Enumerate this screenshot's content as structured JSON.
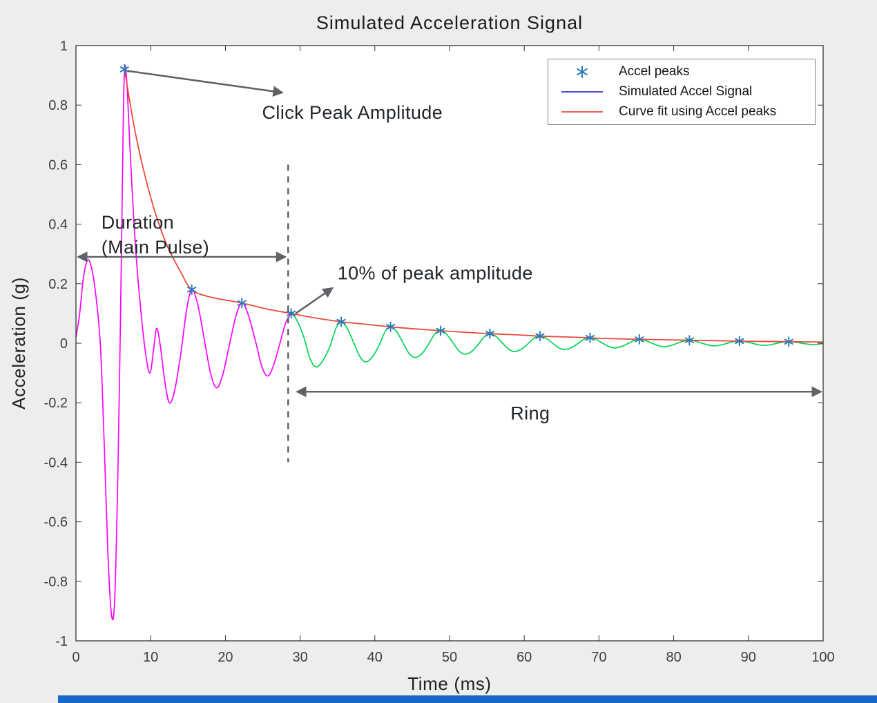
{
  "figure": {
    "background": "#ededed",
    "plot_background": "#ffffff",
    "axis_color": "#333333",
    "tick_label_color": "#3d3d3d",
    "arrow_color": "#5f6368",
    "bottom_bar_color": "#1968c8"
  },
  "chart_data": {
    "type": "line",
    "title": "Simulated Acceleration Signal",
    "xlabel": "Time (ms)",
    "ylabel": "Acceleration (g)",
    "xlim": [
      0,
      100
    ],
    "ylim": [
      -1,
      1
    ],
    "x_ticks": [
      0,
      10,
      20,
      30,
      40,
      50,
      60,
      70,
      80,
      90,
      100
    ],
    "y_ticks": [
      1,
      0.8,
      0.6,
      0.4,
      0.2,
      0,
      -0.2,
      -0.4,
      -0.6,
      -0.8,
      -1
    ],
    "grid": false,
    "legend": {
      "position": "top-right",
      "entries": [
        {
          "label": "Accel peaks",
          "marker": "asterisk",
          "color": "#2b7bba"
        },
        {
          "label": "Simulated Accel Signal",
          "marker": "line",
          "color": "#3333cc"
        },
        {
          "label": "Curve fit using Accel peaks",
          "marker": "line",
          "color": "#e74a3b"
        }
      ]
    },
    "peaks": {
      "t": [
        6.5,
        15.5,
        22.2,
        28.8,
        35.5,
        42.1,
        48.8,
        55.4,
        62.1,
        68.8,
        75.4,
        82.1,
        88.8,
        95.4
      ],
      "y": [
        0.92,
        0.18,
        0.135,
        0.1,
        0.072,
        0.055,
        0.042,
        0.032,
        0.024,
        0.018,
        0.013,
        0.01,
        0.007,
        0.005
      ],
      "marker_color": "#2b7bba"
    },
    "signal": {
      "main_pulse_color": "#ff00ff",
      "ring_color": "#00d455",
      "split_t": 28.8,
      "points": [
        [
          0,
          0.02
        ],
        [
          0.5,
          0.1
        ],
        [
          1.0,
          0.22
        ],
        [
          1.6,
          0.28
        ],
        [
          2.2,
          0.24
        ],
        [
          2.8,
          0.13
        ],
        [
          3.3,
          -0.02
        ],
        [
          3.8,
          -0.35
        ],
        [
          4.3,
          -0.72
        ],
        [
          4.8,
          -0.92
        ],
        [
          5.2,
          -0.85
        ],
        [
          5.6,
          -0.45
        ],
        [
          6.0,
          0.15
        ],
        [
          6.3,
          0.7
        ],
        [
          6.5,
          0.92
        ],
        [
          6.8,
          0.88
        ],
        [
          7.3,
          0.62
        ],
        [
          7.9,
          0.35
        ],
        [
          8.6,
          0.13
        ],
        [
          9.3,
          -0.03
        ],
        [
          9.9,
          -0.1
        ],
        [
          10.4,
          -0.02
        ],
        [
          10.8,
          0.05
        ],
        [
          11.3,
          -0.01
        ],
        [
          11.9,
          -0.13
        ],
        [
          12.5,
          -0.2
        ],
        [
          13.2,
          -0.16
        ],
        [
          14.0,
          -0.04
        ],
        [
          14.8,
          0.11
        ],
        [
          15.5,
          0.18
        ],
        [
          16.3,
          0.13
        ],
        [
          17.2,
          0.01
        ],
        [
          18.0,
          -0.1
        ],
        [
          18.8,
          -0.15
        ],
        [
          19.6,
          -0.11
        ],
        [
          20.5,
          -0.01
        ],
        [
          21.4,
          0.09
        ],
        [
          22.2,
          0.135
        ],
        [
          23.0,
          0.1
        ],
        [
          24.0,
          0.01
        ],
        [
          24.9,
          -0.08
        ],
        [
          25.7,
          -0.11
        ],
        [
          26.5,
          -0.07
        ],
        [
          27.4,
          0.01
        ],
        [
          28.1,
          0.07
        ],
        [
          28.8,
          0.1
        ],
        [
          29.5,
          0.08
        ],
        [
          30.5,
          0.02
        ],
        [
          31.3,
          -0.05
        ],
        [
          32.1,
          -0.08
        ],
        [
          33.0,
          -0.06
        ],
        [
          34.0,
          -0.01
        ],
        [
          34.8,
          0.05
        ],
        [
          35.5,
          0.072
        ],
        [
          36.3,
          0.05
        ],
        [
          37.2,
          0.0
        ],
        [
          38.0,
          -0.045
        ],
        [
          38.8,
          -0.063
        ],
        [
          39.7,
          -0.045
        ],
        [
          40.6,
          -0.005
        ],
        [
          41.4,
          0.04
        ],
        [
          42.1,
          0.055
        ],
        [
          42.9,
          0.04
        ],
        [
          43.8,
          0.0
        ],
        [
          44.6,
          -0.035
        ],
        [
          45.4,
          -0.048
        ],
        [
          46.3,
          -0.035
        ],
        [
          47.2,
          -0.003
        ],
        [
          48.0,
          0.03
        ],
        [
          48.8,
          0.042
        ],
        [
          49.6,
          0.03
        ],
        [
          50.5,
          0.0
        ],
        [
          51.3,
          -0.027
        ],
        [
          52.1,
          -0.037
        ],
        [
          53.0,
          -0.027
        ],
        [
          53.9,
          -0.002
        ],
        [
          54.7,
          0.023
        ],
        [
          55.4,
          0.032
        ],
        [
          56.2,
          0.023
        ],
        [
          57.1,
          0.0
        ],
        [
          57.9,
          -0.02
        ],
        [
          58.7,
          -0.028
        ],
        [
          59.6,
          -0.02
        ],
        [
          60.5,
          -0.002
        ],
        [
          61.3,
          0.017
        ],
        [
          62.1,
          0.024
        ],
        [
          62.9,
          0.017
        ],
        [
          63.8,
          0.0
        ],
        [
          64.6,
          -0.015
        ],
        [
          65.4,
          -0.021
        ],
        [
          66.3,
          -0.015
        ],
        [
          67.2,
          -0.001
        ],
        [
          68.0,
          0.013
        ],
        [
          68.8,
          0.018
        ],
        [
          69.6,
          0.013
        ],
        [
          70.5,
          0.0
        ],
        [
          71.3,
          -0.011
        ],
        [
          72.1,
          -0.016
        ],
        [
          73.0,
          -0.011
        ],
        [
          73.9,
          -0.001
        ],
        [
          74.7,
          0.009
        ],
        [
          75.4,
          0.013
        ],
        [
          76.2,
          0.009
        ],
        [
          77.1,
          0.0
        ],
        [
          77.9,
          -0.008
        ],
        [
          78.7,
          -0.012
        ],
        [
          79.6,
          -0.008
        ],
        [
          80.5,
          0.0
        ],
        [
          81.3,
          0.007
        ],
        [
          82.1,
          0.01
        ],
        [
          82.9,
          0.007
        ],
        [
          83.8,
          0.0
        ],
        [
          84.6,
          -0.006
        ],
        [
          85.4,
          -0.009
        ],
        [
          86.3,
          -0.006
        ],
        [
          87.2,
          0.0
        ],
        [
          88.0,
          0.005
        ],
        [
          88.8,
          0.007
        ],
        [
          89.6,
          0.005
        ],
        [
          90.5,
          0.0
        ],
        [
          91.3,
          -0.005
        ],
        [
          92.1,
          -0.007
        ],
        [
          93.0,
          -0.005
        ],
        [
          93.9,
          0.0
        ],
        [
          94.7,
          0.004
        ],
        [
          95.4,
          0.005
        ],
        [
          96.2,
          0.004
        ],
        [
          97.1,
          0.0
        ],
        [
          97.9,
          -0.003
        ],
        [
          98.7,
          -0.005
        ],
        [
          99.5,
          -0.003
        ],
        [
          100,
          -0.001
        ]
      ]
    },
    "fit": {
      "color": "#e74a3b",
      "points": [
        [
          6.5,
          0.92
        ],
        [
          8,
          0.7
        ],
        [
          10,
          0.49
        ],
        [
          12,
          0.34
        ],
        [
          14,
          0.24
        ],
        [
          15.5,
          0.18
        ],
        [
          18,
          0.155
        ],
        [
          22.2,
          0.135
        ],
        [
          25.5,
          0.115
        ],
        [
          28.8,
          0.1
        ],
        [
          32,
          0.085
        ],
        [
          35.5,
          0.072
        ],
        [
          39,
          0.063
        ],
        [
          42.1,
          0.055
        ],
        [
          45.5,
          0.048
        ],
        [
          48.8,
          0.042
        ],
        [
          52,
          0.037
        ],
        [
          55.4,
          0.032
        ],
        [
          59,
          0.028
        ],
        [
          62.1,
          0.024
        ],
        [
          65.5,
          0.021
        ],
        [
          68.8,
          0.018
        ],
        [
          72,
          0.015
        ],
        [
          75.4,
          0.013
        ],
        [
          79,
          0.0115
        ],
        [
          82.1,
          0.01
        ],
        [
          85.5,
          0.0085
        ],
        [
          88.8,
          0.007
        ],
        [
          92,
          0.006
        ],
        [
          95.4,
          0.005
        ],
        [
          100,
          0.004
        ]
      ]
    },
    "threshold_line": {
      "t": 28.4,
      "y_top": 0.6,
      "y_bottom": -0.4,
      "color": "#5d5d5d",
      "style": "dashed"
    },
    "annotations": [
      {
        "id": "click-peak-amplitude",
        "text": "Click Peak Amplitude",
        "text_anchor": {
          "t": 37.0,
          "y": 0.775,
          "align": "middle"
        },
        "arrow": {
          "from": {
            "t": 6.9,
            "y": 0.915
          },
          "to": {
            "t": 27.6,
            "y": 0.842
          },
          "heads": "end"
        }
      },
      {
        "id": "duration-main-pulse",
        "lines": [
          "Duration",
          "(Main Pulse)"
        ],
        "text_anchor": {
          "t": 3.4,
          "y": 0.406,
          "align": "start"
        },
        "arrow": {
          "from": {
            "t": 0.3,
            "y": 0.29
          },
          "to": {
            "t": 28.0,
            "y": 0.29
          },
          "heads": "both"
        }
      },
      {
        "id": "ten-percent-of-peak",
        "text": "10% of peak amplitude",
        "text_anchor": {
          "t": 35.0,
          "y": 0.235,
          "align": "start"
        },
        "arrow": {
          "from": {
            "t": 29.4,
            "y": 0.1
          },
          "to": {
            "t": 34.3,
            "y": 0.185
          },
          "heads": "end"
        }
      },
      {
        "id": "ring",
        "text": "Ring",
        "text_anchor": {
          "t": 60.8,
          "y": -0.235,
          "align": "middle"
        },
        "arrow": {
          "from": {
            "t": 29.6,
            "y": -0.163
          },
          "to": {
            "t": 99.7,
            "y": -0.163
          },
          "heads": "both"
        }
      }
    ]
  }
}
